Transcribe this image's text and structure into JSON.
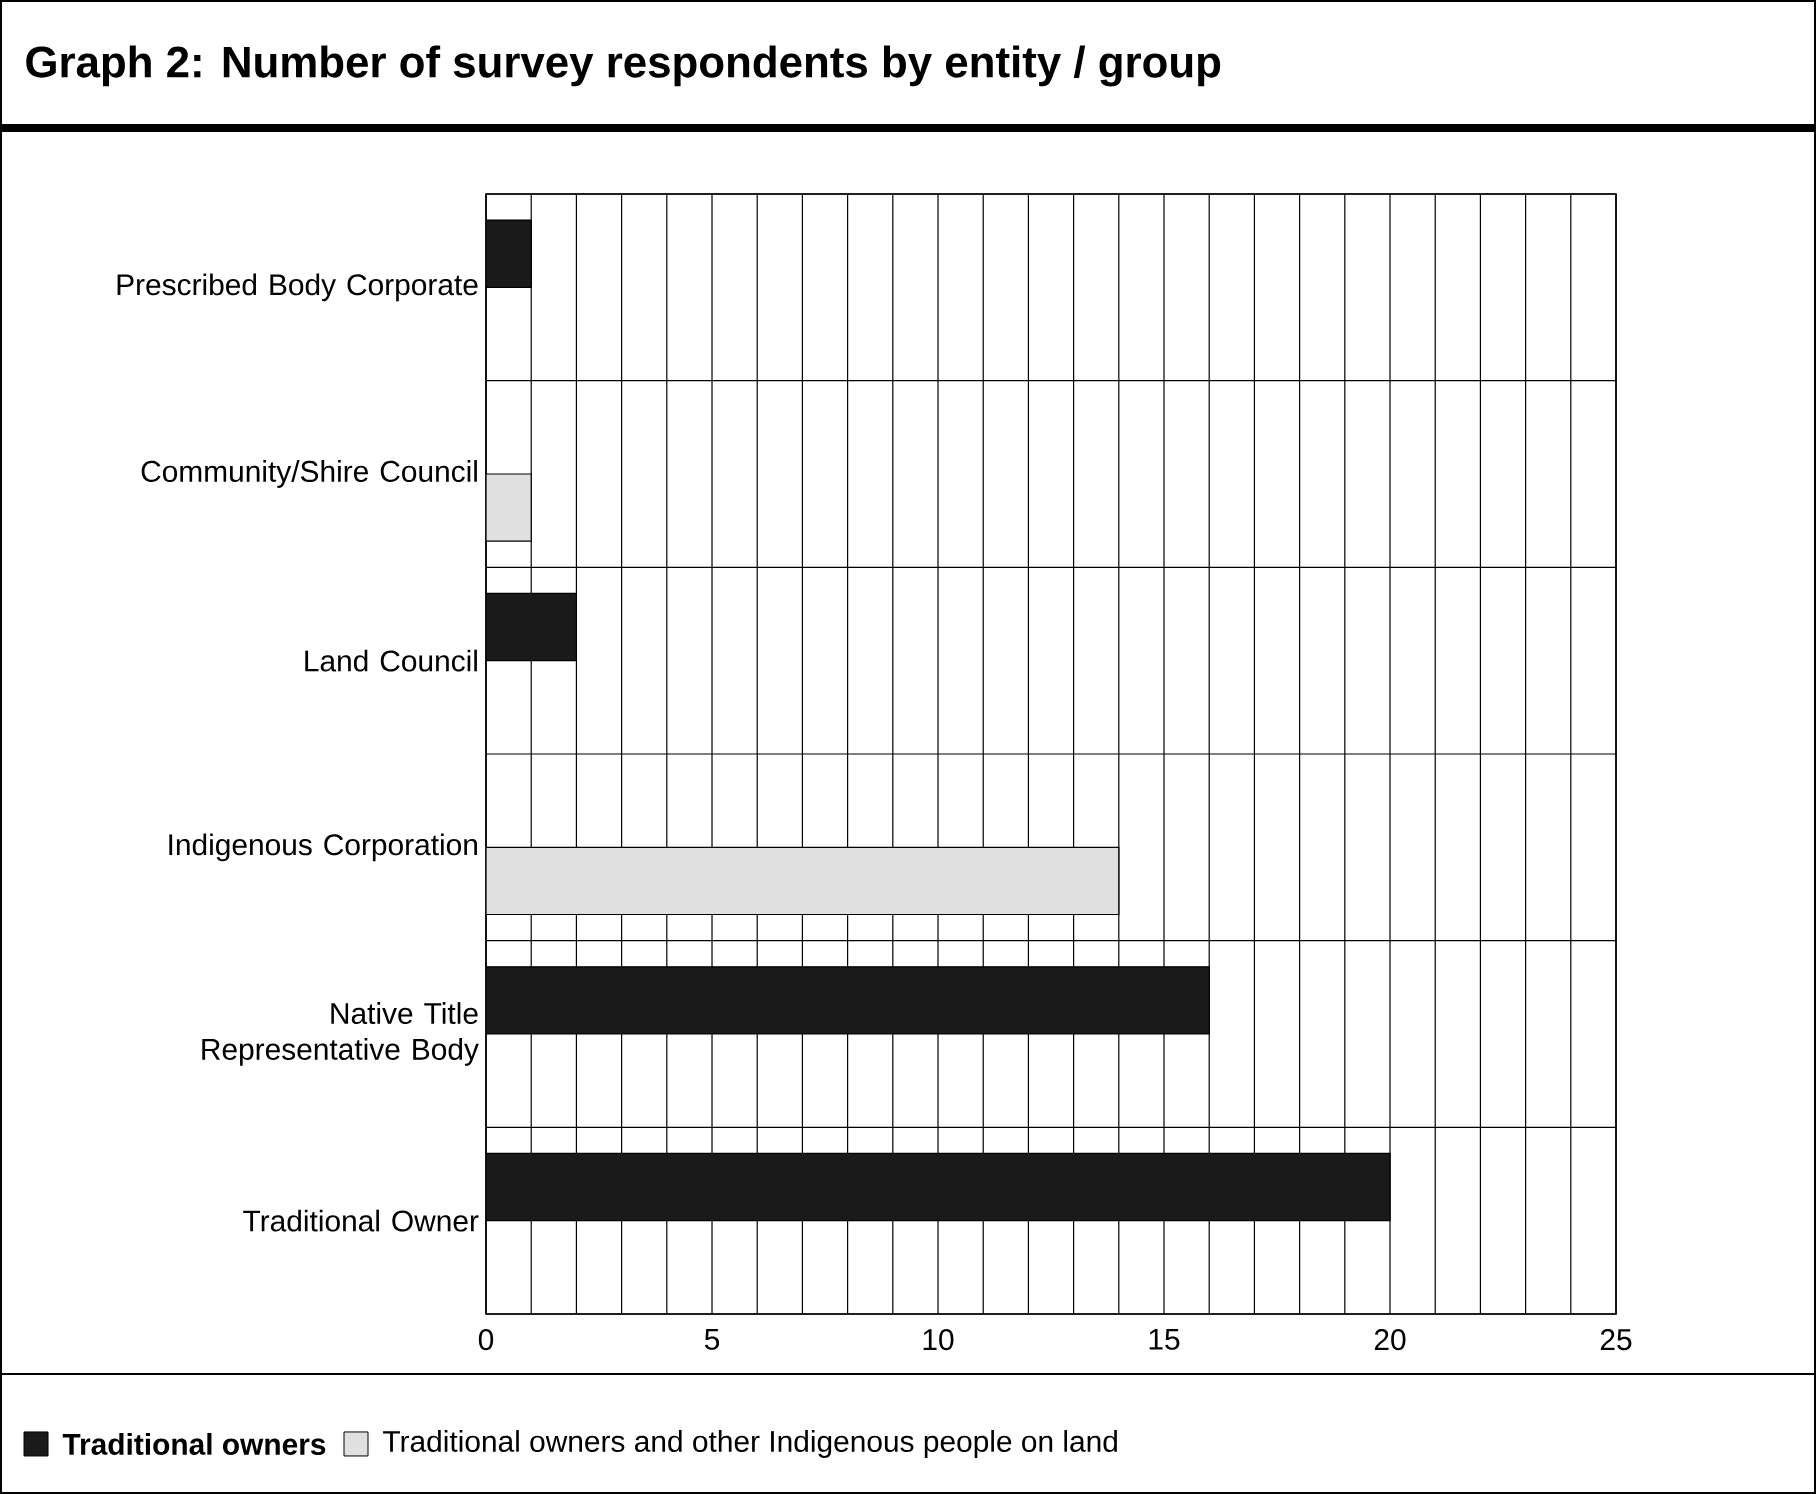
{
  "chart_data": {
    "type": "bar",
    "orientation": "horizontal",
    "title": "Graph 2: Number of survey respondents by entity / group",
    "categories": [
      "Prescribed Body Corporate",
      "Community/Shire Council",
      "Land Council",
      "Indigenous Corporation",
      "Native Title Representative Body",
      "Traditional Owner"
    ],
    "series": [
      {
        "name": "Traditional owners",
        "color": "#1a1a1a",
        "values": [
          1,
          null,
          2,
          null,
          16,
          20
        ]
      },
      {
        "name": "Traditional owners and other Indigenous people on land",
        "color": "#e0e0e0",
        "values": [
          null,
          1,
          null,
          14,
          null,
          null
        ]
      }
    ],
    "xlim": [
      0,
      25
    ],
    "xticks": [
      0,
      {
        "value": 1,
        "label": null
      },
      {
        "value": 2,
        "label": null
      },
      {
        "value": 3,
        "label": null
      },
      {
        "value": 4,
        "label": null
      },
      5,
      {
        "value": 6,
        "label": null
      },
      {
        "value": 7,
        "label": null
      },
      {
        "value": 8,
        "label": null
      },
      {
        "value": 9,
        "label": null
      },
      10,
      {
        "value": 11,
        "label": null
      },
      {
        "value": 12,
        "label": null
      },
      {
        "value": 13,
        "label": null
      },
      {
        "value": 14,
        "label": null
      },
      15,
      {
        "value": 16,
        "label": null
      },
      {
        "value": 17,
        "label": null
      },
      {
        "value": 18,
        "label": null
      },
      {
        "value": 19,
        "label": null
      },
      20,
      {
        "value": 21,
        "label": null
      },
      {
        "value": 22,
        "label": null
      },
      {
        "value": 23,
        "label": null
      },
      {
        "value": 24,
        "label": null
      },
      25
    ],
    "grid": true,
    "legend": "bottom"
  }
}
